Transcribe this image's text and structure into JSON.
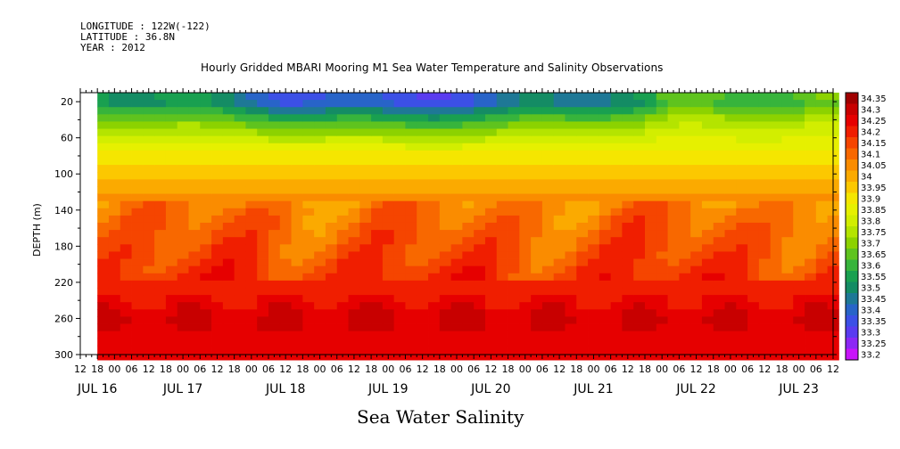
{
  "meta": {
    "longitude": "LONGITUDE : 122W(-122)",
    "latitude": "LATITUDE : 36.8N",
    "year": "YEAR : 2012"
  },
  "chart_data": {
    "type": "heatmap",
    "title": "Hourly Gridded MBARI Mooring M1 Sea Water Temperature and Salinity Observations",
    "xlabel": "Sea Water Salinity",
    "ylabel": "DEPTH (m)",
    "x_hours": [
      "12",
      "18",
      "00",
      "06",
      "12",
      "18",
      "00",
      "06",
      "12",
      "18",
      "00",
      "06",
      "12",
      "18",
      "00",
      "06",
      "12",
      "18",
      "00",
      "06",
      "12",
      "18",
      "00",
      "06",
      "12",
      "18",
      "00",
      "06",
      "12",
      "18",
      "00",
      "06",
      "12",
      "18",
      "00",
      "06",
      "12",
      "18",
      "00",
      "06",
      "12",
      "18",
      "00",
      "06",
      "12"
    ],
    "x_days": [
      "JUL 16",
      "JUL 17",
      "JUL 18",
      "JUL 19",
      "JUL 20",
      "JUL 21",
      "JUL 22",
      "JUL 23"
    ],
    "x_range_hours": [
      0,
      264
    ],
    "data_start_hour": 6,
    "ylim": [
      300,
      10
    ],
    "y_ticks": [
      20,
      60,
      100,
      140,
      180,
      220,
      260,
      300
    ],
    "colorbar_levels": [
      "34.35",
      "34.3",
      "34.25",
      "34.2",
      "34.15",
      "34.1",
      "34.05",
      "34",
      "33.95",
      "33.9",
      "33.85",
      "33.8",
      "33.75",
      "33.7",
      "33.65",
      "33.6",
      "33.55",
      "33.5",
      "33.45",
      "33.4",
      "33.35",
      "33.3",
      "33.25",
      "33.2"
    ],
    "colorbar_colors": [
      "#a00000",
      "#c80000",
      "#e60000",
      "#f01e00",
      "#f54500",
      "#f86800",
      "#fa8c00",
      "#fbaa00",
      "#fcc800",
      "#f5e600",
      "#e6f000",
      "#d2ee00",
      "#b4e400",
      "#8cd200",
      "#5fc31e",
      "#37b43c",
      "#19a050",
      "#148c64",
      "#1e7896",
      "#2864c8",
      "#3c50e6",
      "#5a3cf0",
      "#8c28f5",
      "#c814fa"
    ],
    "depth_profile": [
      {
        "depth": 10,
        "value": 33.65
      },
      {
        "depth": 20,
        "value": 33.6
      },
      {
        "depth": 40,
        "value": 33.75
      },
      {
        "depth": 60,
        "value": 33.85
      },
      {
        "depth": 80,
        "value": 33.92
      },
      {
        "depth": 100,
        "value": 33.97
      },
      {
        "depth": 120,
        "value": 34.05
      },
      {
        "depth": 140,
        "value": 34.1
      },
      {
        "depth": 180,
        "value": 34.15
      },
      {
        "depth": 220,
        "value": 34.2
      },
      {
        "depth": 260,
        "value": 34.3
      },
      {
        "depth": 300,
        "value": 34.25
      }
    ]
  }
}
